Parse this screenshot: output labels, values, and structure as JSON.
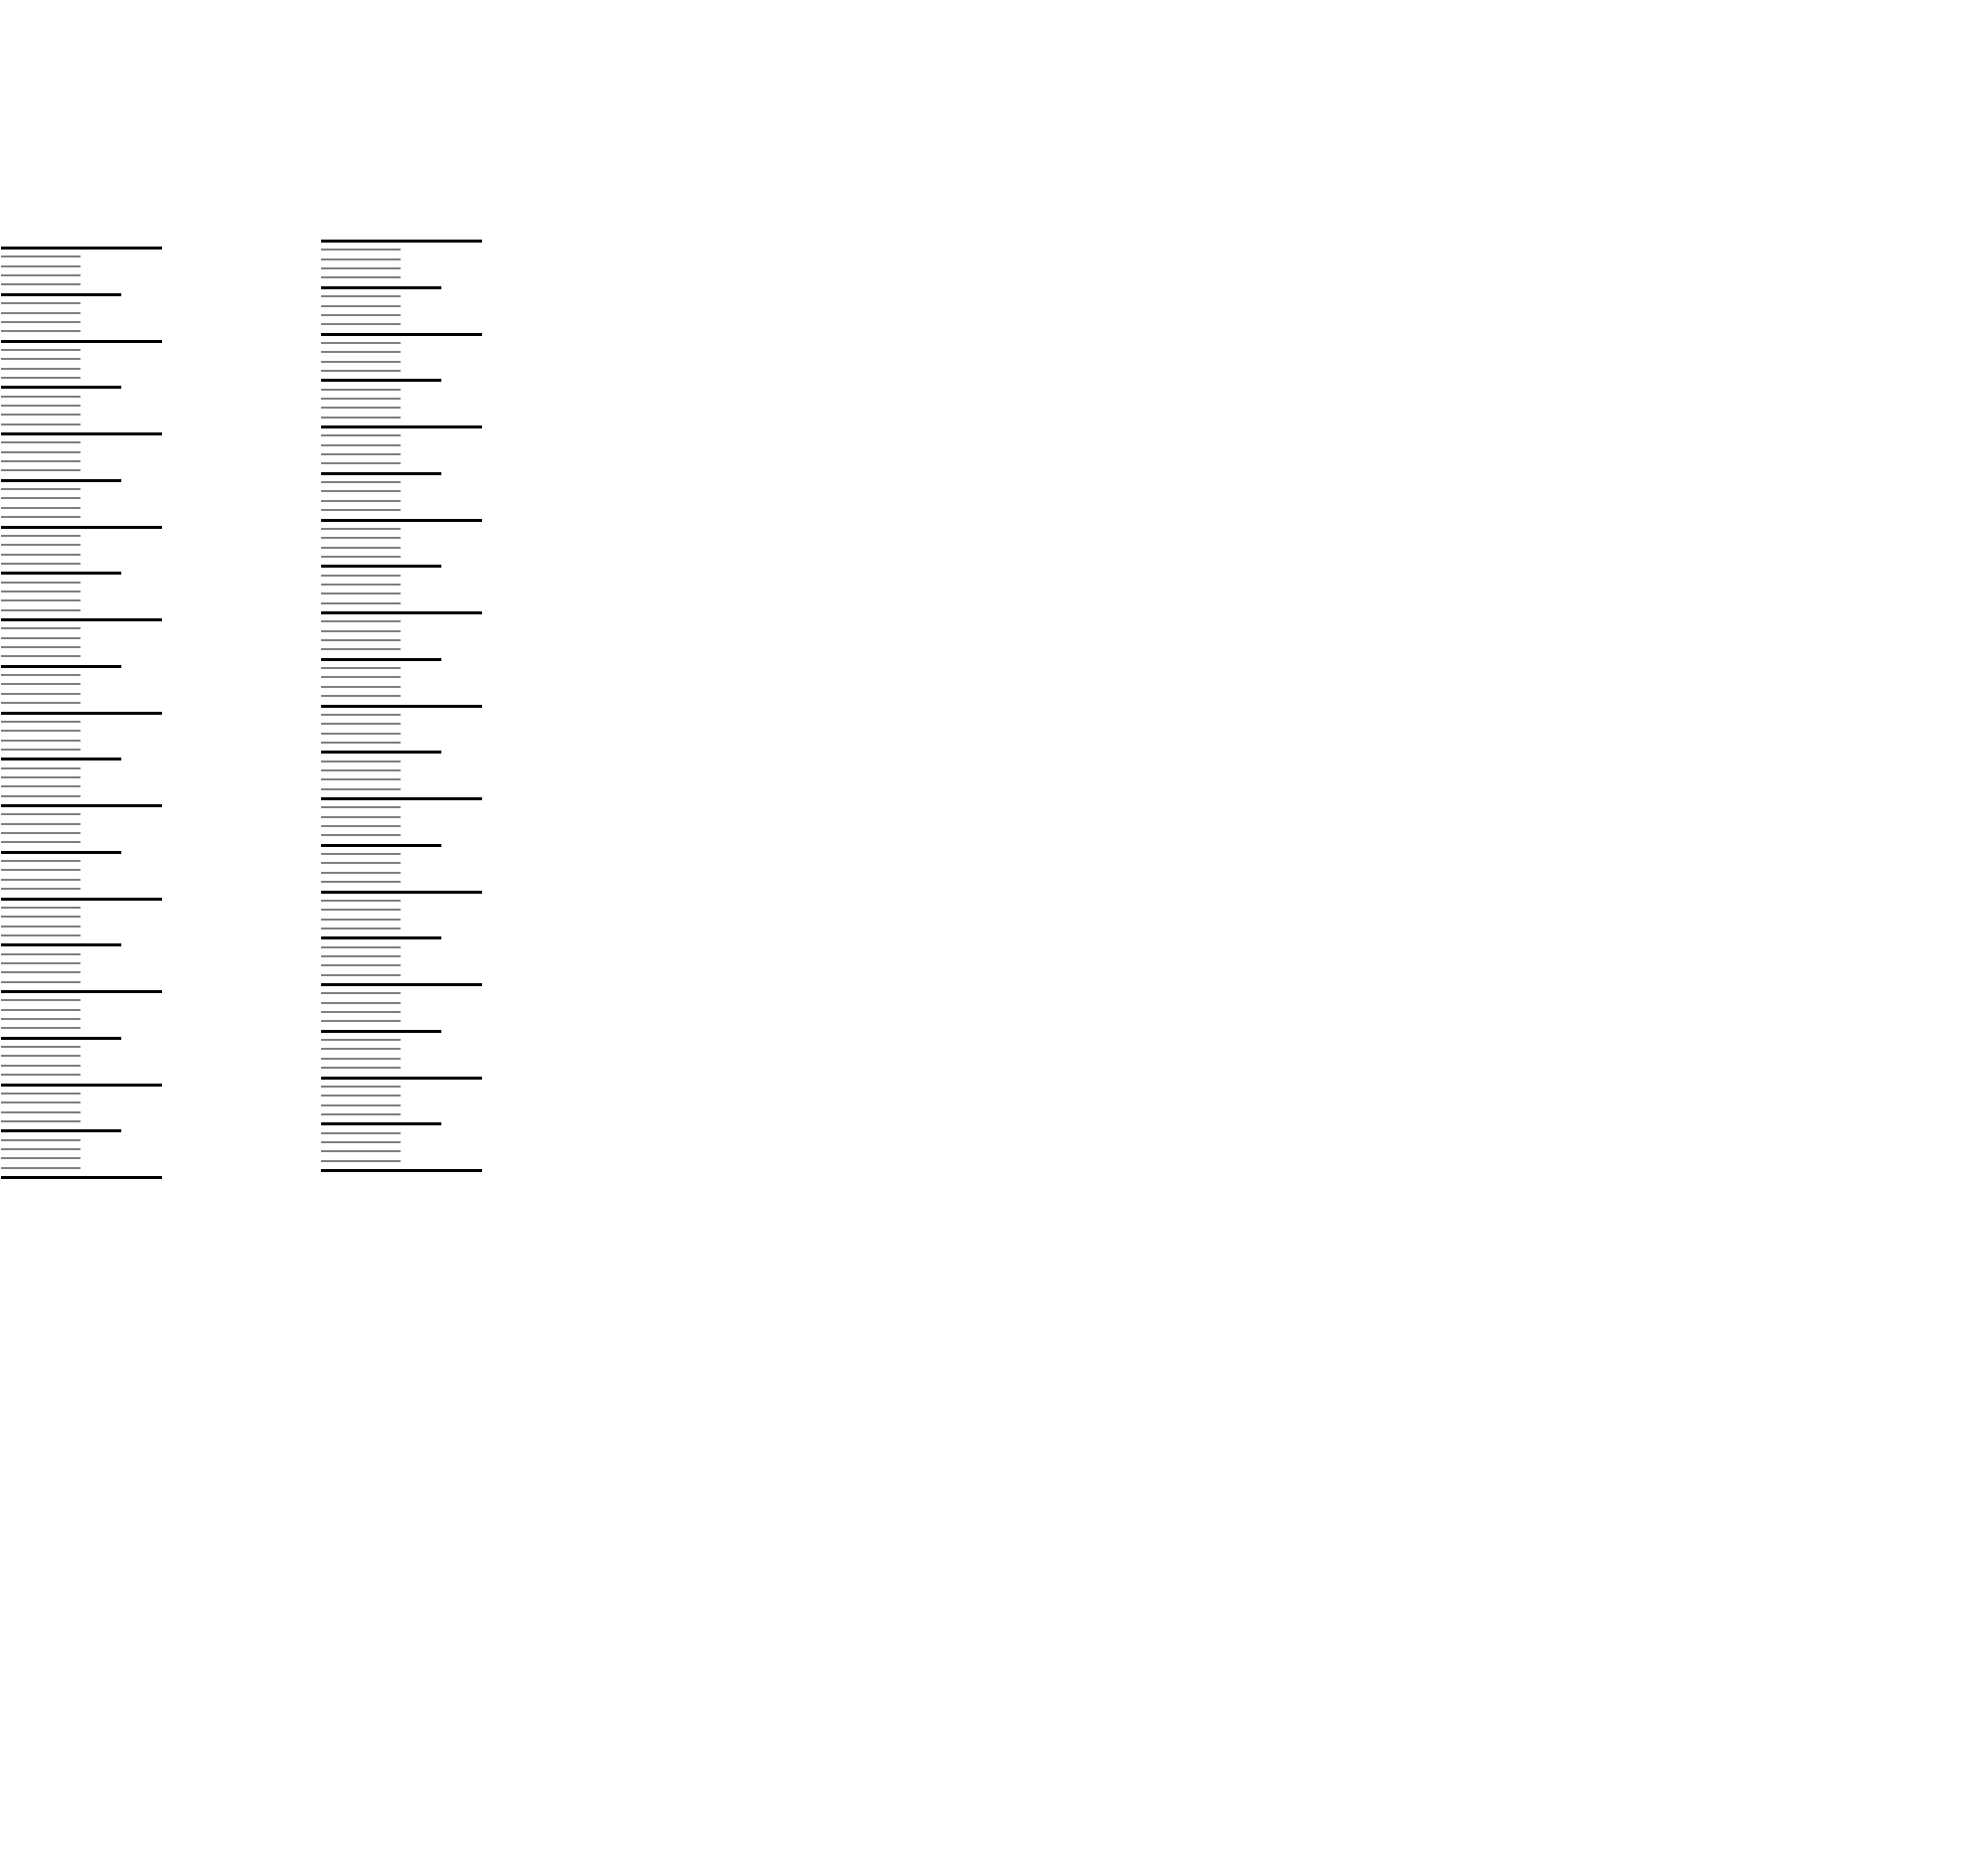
{
  "scales": [
    {
      "major_intervals": 10,
      "subdivisions_per_interval": 10
    },
    {
      "major_intervals": 10,
      "subdivisions_per_interval": 10
    }
  ],
  "colors": {
    "major_tick": "#000000",
    "mid_tick": "#000000",
    "minor_tick": "#808080",
    "background": "#ffffff"
  }
}
